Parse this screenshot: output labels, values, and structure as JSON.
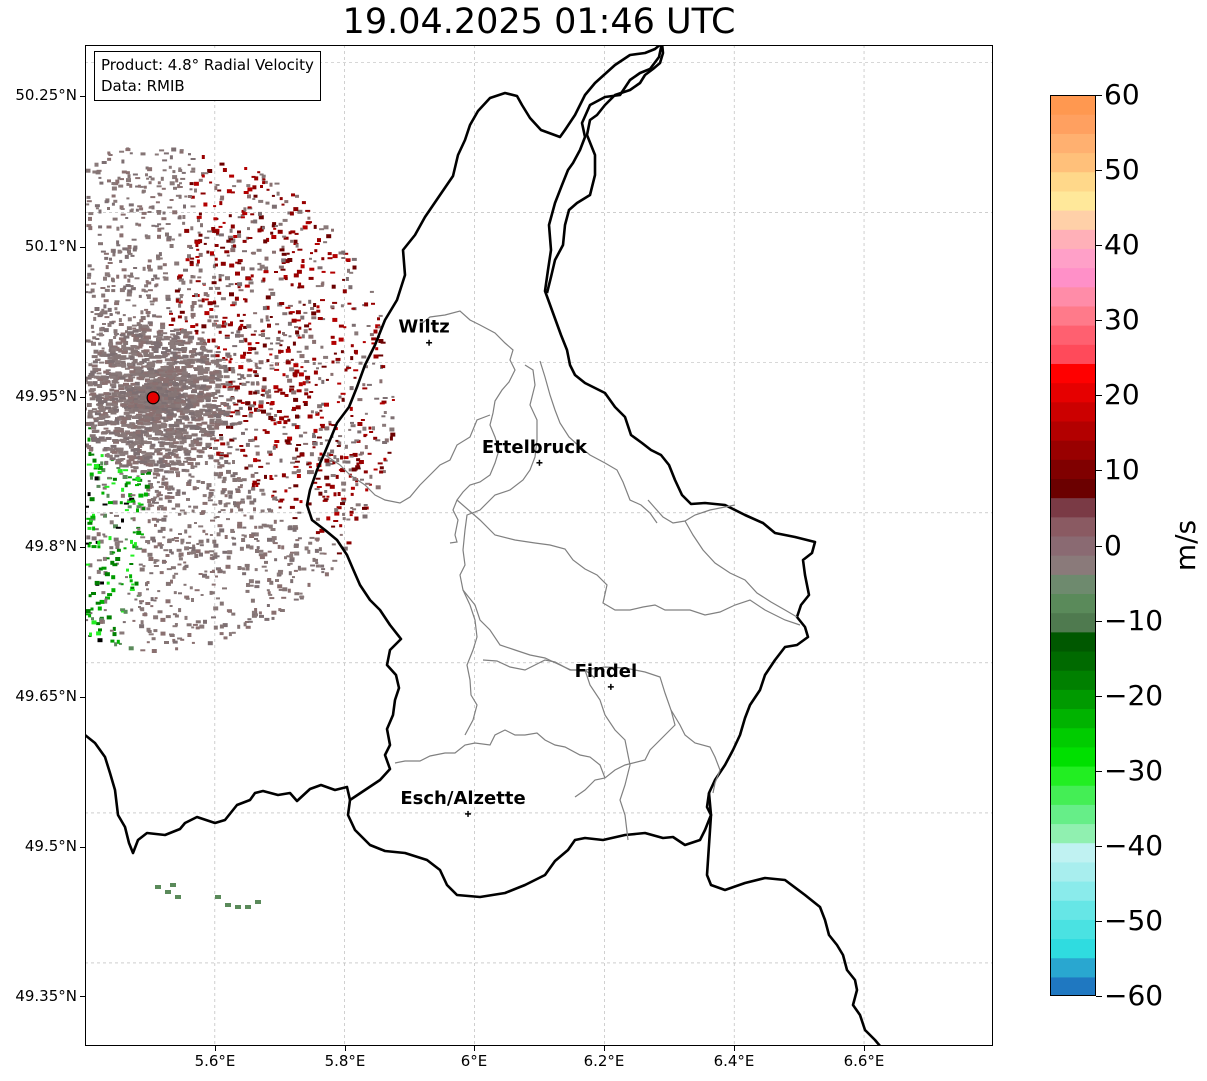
{
  "title": "19.04.2025 01:46 UTC",
  "info": {
    "product": "Product: 4.8° Radial Velocity",
    "data": "Data: RMIB"
  },
  "axes": {
    "lon_range": [
      5.4,
      6.8
    ],
    "lat_range": [
      49.3,
      50.3
    ],
    "x_ticks": [
      "5.6°E",
      "5.8°E",
      "6°E",
      "6.2°E",
      "6.4°E",
      "6.6°E"
    ],
    "y_ticks": [
      "50.25°N",
      "50.1°N",
      "49.95°N",
      "49.8°N",
      "49.65°N",
      "49.5°N",
      "49.35°N"
    ],
    "grid": true
  },
  "places": [
    {
      "name": "Wiltz",
      "lon": 5.93,
      "lat": 49.97
    },
    {
      "name": "Ettelbruck",
      "lon": 6.1,
      "lat": 49.85
    },
    {
      "name": "Findel",
      "lon": 6.21,
      "lat": 49.626
    },
    {
      "name": "Esch/Alzette",
      "lon": 5.99,
      "lat": 49.499
    }
  ],
  "radar_site": {
    "lon": 5.505,
    "lat": 49.915,
    "color": "#e60000"
  },
  "colorbar": {
    "label": "m/s",
    "min": -60,
    "max": 60,
    "ticks": [
      "60",
      "50",
      "40",
      "30",
      "20",
      "10",
      "0",
      "−10",
      "−20",
      "−30",
      "−40",
      "−50",
      "−60"
    ],
    "colors": [
      "#1f78c1",
      "#29a7d0",
      "#2fdce0",
      "#4ae2e2",
      "#66e6e6",
      "#8aebeb",
      "#a8eeee",
      "#c0f2f2",
      "#90f0b0",
      "#66ee88",
      "#44ee55",
      "#22ee22",
      "#00e000",
      "#00cc00",
      "#00b300",
      "#009a00",
      "#008000",
      "#006a00",
      "#005800",
      "#4f7a4f",
      "#5a8a5a",
      "#6e8a6e",
      "#8a7a7a",
      "#8a6a72",
      "#8a5a62",
      "#7a3a45",
      "#6b0000",
      "#800000",
      "#990000",
      "#b30000",
      "#cc0000",
      "#e60000",
      "#ff0000",
      "#ff4a5a",
      "#ff6070",
      "#ff7a8a",
      "#ff8ca8",
      "#ff90c8",
      "#ffa0c8",
      "#ffb0b8",
      "#ffd0a8",
      "#ffe89a",
      "#ffd88a",
      "#ffc07a",
      "#ffb070",
      "#ffa060",
      "#ff9850"
    ],
    "color_values_note": "bottom to top"
  }
}
